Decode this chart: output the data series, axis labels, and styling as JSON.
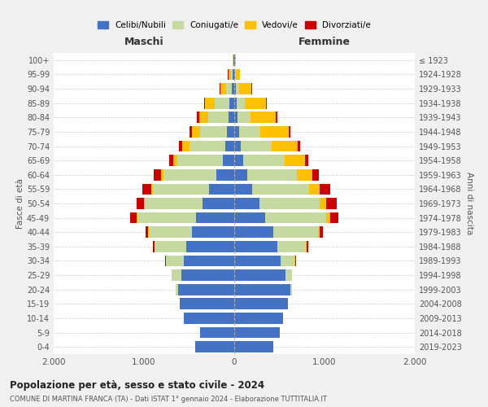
{
  "age_groups": [
    "0-4",
    "5-9",
    "10-14",
    "15-19",
    "20-24",
    "25-29",
    "30-34",
    "35-39",
    "40-44",
    "45-49",
    "50-54",
    "55-59",
    "60-64",
    "65-69",
    "70-74",
    "75-79",
    "80-84",
    "85-89",
    "90-94",
    "95-99",
    "100+"
  ],
  "birth_years": [
    "2019-2023",
    "2014-2018",
    "2009-2013",
    "2004-2008",
    "1999-2003",
    "1994-1998",
    "1989-1993",
    "1984-1988",
    "1979-1983",
    "1974-1978",
    "1969-1973",
    "1964-1968",
    "1959-1963",
    "1954-1958",
    "1949-1953",
    "1944-1948",
    "1939-1943",
    "1934-1938",
    "1929-1933",
    "1924-1928",
    "≤ 1923"
  ],
  "colors": {
    "celibi": "#4472c4",
    "coniugati": "#c5d9a0",
    "vedovi": "#ffc000",
    "divorziati": "#cc0000"
  },
  "males": {
    "celibi": [
      430,
      380,
      560,
      600,
      620,
      590,
      560,
      530,
      470,
      420,
      350,
      280,
      200,
      130,
      100,
      80,
      60,
      50,
      30,
      20,
      10
    ],
    "coniugati": [
      0,
      0,
      0,
      5,
      30,
      100,
      200,
      350,
      480,
      650,
      640,
      620,
      580,
      500,
      400,
      300,
      230,
      170,
      60,
      15,
      5
    ],
    "vedovi": [
      0,
      0,
      0,
      0,
      0,
      0,
      0,
      5,
      5,
      10,
      10,
      20,
      30,
      50,
      80,
      90,
      100,
      100,
      60,
      30,
      5
    ],
    "divorziati": [
      0,
      0,
      0,
      0,
      0,
      5,
      10,
      20,
      30,
      70,
      80,
      100,
      80,
      40,
      30,
      25,
      20,
      15,
      10,
      5,
      2
    ]
  },
  "females": {
    "nubili": [
      435,
      505,
      545,
      595,
      625,
      565,
      515,
      475,
      430,
      345,
      280,
      200,
      140,
      95,
      75,
      55,
      38,
      28,
      18,
      12,
      8
    ],
    "coniugate": [
      0,
      0,
      0,
      4,
      18,
      75,
      155,
      315,
      495,
      670,
      665,
      625,
      555,
      465,
      340,
      235,
      140,
      90,
      35,
      8,
      2
    ],
    "vedove": [
      0,
      0,
      0,
      0,
      0,
      0,
      4,
      8,
      18,
      45,
      75,
      125,
      170,
      225,
      290,
      315,
      285,
      235,
      140,
      45,
      4
    ],
    "divorziate": [
      0,
      0,
      0,
      0,
      0,
      4,
      8,
      18,
      38,
      95,
      115,
      115,
      75,
      38,
      28,
      18,
      12,
      8,
      4,
      2,
      1
    ]
  },
  "title_main": "Popolazione per età, sesso e stato civile - 2024",
  "title_sub": "COMUNE DI MARTINA FRANCA (TA) - Dati ISTAT 1° gennaio 2024 - Elaborazione TUTTITALIA.IT",
  "xlabel_left": "Maschi",
  "xlabel_right": "Femmine",
  "ylabel_left": "Fasce di età",
  "ylabel_right": "Anni di nascita",
  "xlim": 2000,
  "xticklabels": [
    "2.000",
    "1.000",
    "0",
    "1.000",
    "2.000"
  ],
  "legend_labels": [
    "Celibi/Nubili",
    "Coniugati/e",
    "Vedovi/e",
    "Divorziati/e"
  ],
  "background_color": "#f0f0f0",
  "plot_background": "#ffffff"
}
